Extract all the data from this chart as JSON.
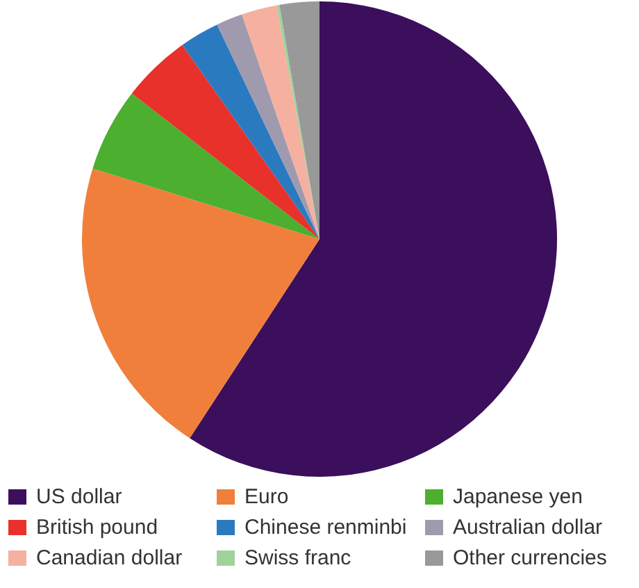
{
  "chart_data": {
    "type": "pie",
    "categories": [
      "US dollar",
      "Euro",
      "Japanese yen",
      "British pound",
      "Chinese renminbi",
      "Australian dollar",
      "Canadian dollar",
      "Swiss franc",
      "Other currencies"
    ],
    "values": [
      59.2,
      20.6,
      5.7,
      4.7,
      2.7,
      1.8,
      2.4,
      0.2,
      2.7
    ],
    "colors": [
      "#3b0f5c",
      "#f07f3c",
      "#4caf2f",
      "#e8312b",
      "#2a7ac0",
      "#a09aae",
      "#f5b0a0",
      "#9fd39a",
      "#999999"
    ],
    "legend": "bottom"
  }
}
